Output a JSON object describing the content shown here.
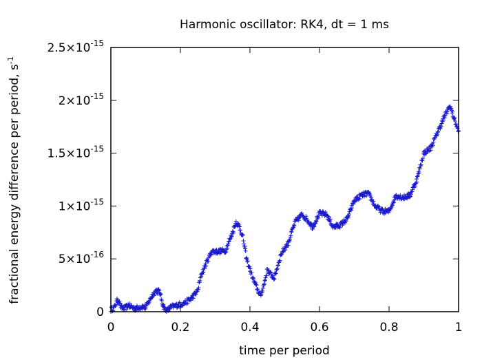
{
  "chart_data": {
    "type": "scatter",
    "title": "Harmonic oscillator: RK4, dt = 1 ms",
    "xlabel": "time per period",
    "ylabel": "fractional energy difference per period, s",
    "ylabel_superscript": "-1",
    "xlim": [
      0,
      1
    ],
    "ylim": [
      0,
      2.5e-15
    ],
    "x_ticks": [
      {
        "value": 0,
        "label": "0"
      },
      {
        "value": 0.2,
        "label": "0.2"
      },
      {
        "value": 0.4,
        "label": "0.4"
      },
      {
        "value": 0.6,
        "label": "0.6"
      },
      {
        "value": 0.8,
        "label": "0.8"
      },
      {
        "value": 1,
        "label": "1"
      }
    ],
    "y_ticks": [
      {
        "value": 0,
        "mantissa": "0",
        "exponent": ""
      },
      {
        "value": 5e-16,
        "mantissa": "5×10",
        "exponent": "-16"
      },
      {
        "value": 1e-15,
        "mantissa": "1×10",
        "exponent": "-15"
      },
      {
        "value": 1.5e-15,
        "mantissa": "1.5×10",
        "exponent": "-15"
      },
      {
        "value": 2e-15,
        "mantissa": "2×10",
        "exponent": "-15"
      },
      {
        "value": 2.5e-15,
        "mantissa": "2.5×10",
        "exponent": "-15"
      }
    ],
    "grid": false,
    "legend": "none",
    "marker": "plus",
    "color": "#1a1acc",
    "trend": [
      [
        0.0,
        2e-17
      ],
      [
        0.01,
        4e-17
      ],
      [
        0.02,
        1.2e-16
      ],
      [
        0.03,
        4e-17
      ],
      [
        0.04,
        3e-17
      ],
      [
        0.05,
        6e-17
      ],
      [
        0.07,
        3e-17
      ],
      [
        0.09,
        5e-17
      ],
      [
        0.1,
        4e-17
      ],
      [
        0.11,
        1e-16
      ],
      [
        0.12,
        1.6e-16
      ],
      [
        0.13,
        2e-16
      ],
      [
        0.14,
        1.9e-16
      ],
      [
        0.15,
        6e-17
      ],
      [
        0.16,
        0.0
      ],
      [
        0.17,
        4e-17
      ],
      [
        0.19,
        6e-17
      ],
      [
        0.21,
        8e-17
      ],
      [
        0.23,
        1.2e-16
      ],
      [
        0.25,
        2e-16
      ],
      [
        0.26,
        3.5e-16
      ],
      [
        0.28,
        5e-16
      ],
      [
        0.29,
        5.7e-16
      ],
      [
        0.31,
        5.7e-16
      ],
      [
        0.33,
        5.8e-16
      ],
      [
        0.35,
        7.5e-16
      ],
      [
        0.36,
        8.5e-16
      ],
      [
        0.37,
        8e-16
      ],
      [
        0.38,
        7e-16
      ],
      [
        0.39,
        5e-16
      ],
      [
        0.41,
        3e-16
      ],
      [
        0.43,
        1.5e-16
      ],
      [
        0.44,
        2.5e-16
      ],
      [
        0.45,
        4e-16
      ],
      [
        0.46,
        3.5e-16
      ],
      [
        0.47,
        3.2e-16
      ],
      [
        0.49,
        5.5e-16
      ],
      [
        0.51,
        6.5e-16
      ],
      [
        0.53,
        8.5e-16
      ],
      [
        0.55,
        9.2e-16
      ],
      [
        0.57,
        8.5e-16
      ],
      [
        0.58,
        8e-16
      ],
      [
        0.6,
        9.3e-16
      ],
      [
        0.62,
        9.2e-16
      ],
      [
        0.64,
        8e-16
      ],
      [
        0.66,
        8.2e-16
      ],
      [
        0.68,
        8.8e-16
      ],
      [
        0.7,
        1.05e-15
      ],
      [
        0.72,
        1.1e-15
      ],
      [
        0.74,
        1.12e-15
      ],
      [
        0.76,
        1e-15
      ],
      [
        0.78,
        9.5e-16
      ],
      [
        0.8,
        9.5e-16
      ],
      [
        0.82,
        1.1e-15
      ],
      [
        0.84,
        1.08e-15
      ],
      [
        0.86,
        1.1e-15
      ],
      [
        0.88,
        1.25e-15
      ],
      [
        0.9,
        1.5e-15
      ],
      [
        0.92,
        1.55e-15
      ],
      [
        0.94,
        1.7e-15
      ],
      [
        0.96,
        1.85e-15
      ],
      [
        0.975,
        1.95e-15
      ],
      [
        0.985,
        1.85e-15
      ],
      [
        1.0,
        1.7e-15
      ]
    ]
  }
}
